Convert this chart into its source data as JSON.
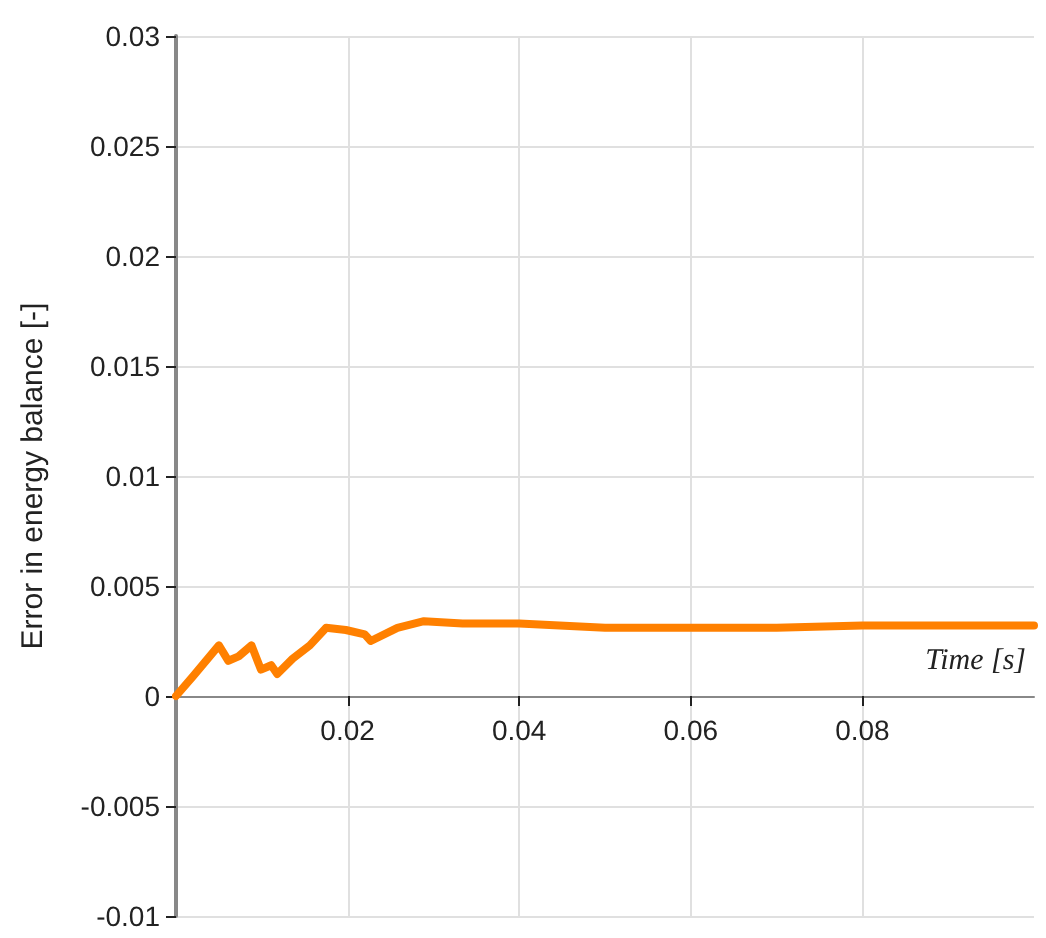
{
  "chart_data": {
    "type": "line",
    "xlabel": "Time [s]",
    "ylabel": "Error in energy balance [-]",
    "x": [
      0,
      0.002,
      0.005,
      0.0061,
      0.0073,
      0.0088,
      0.0099,
      0.0111,
      0.0118,
      0.0136,
      0.0156,
      0.0175,
      0.0198,
      0.022,
      0.0227,
      0.0258,
      0.0289,
      0.0334,
      0.04,
      0.05,
      0.06,
      0.07,
      0.08,
      0.09,
      0.1
    ],
    "series": [
      {
        "color": "#ff8000",
        "values": [
          0,
          0.0009,
          0.0023,
          0.0016,
          0.0018,
          0.0023,
          0.0012,
          0.0014,
          0.001,
          0.0017,
          0.0023,
          0.0031,
          0.003,
          0.0028,
          0.0025,
          0.0031,
          0.0034,
          0.0033,
          0.0033,
          0.0031,
          0.0031,
          0.0031,
          0.0032,
          0.0032,
          0.0032
        ]
      }
    ],
    "xlim": [
      0,
      0.1
    ],
    "xticks": [
      0.02,
      0.04,
      0.06,
      0.08
    ],
    "ylim": [
      -0.01,
      0.03
    ],
    "yticks": [
      -0.01,
      -0.005,
      0,
      0.005,
      0.01,
      0.015,
      0.02,
      0.025,
      0.03
    ],
    "grid": true,
    "marker": "none",
    "line_style": "solid"
  }
}
